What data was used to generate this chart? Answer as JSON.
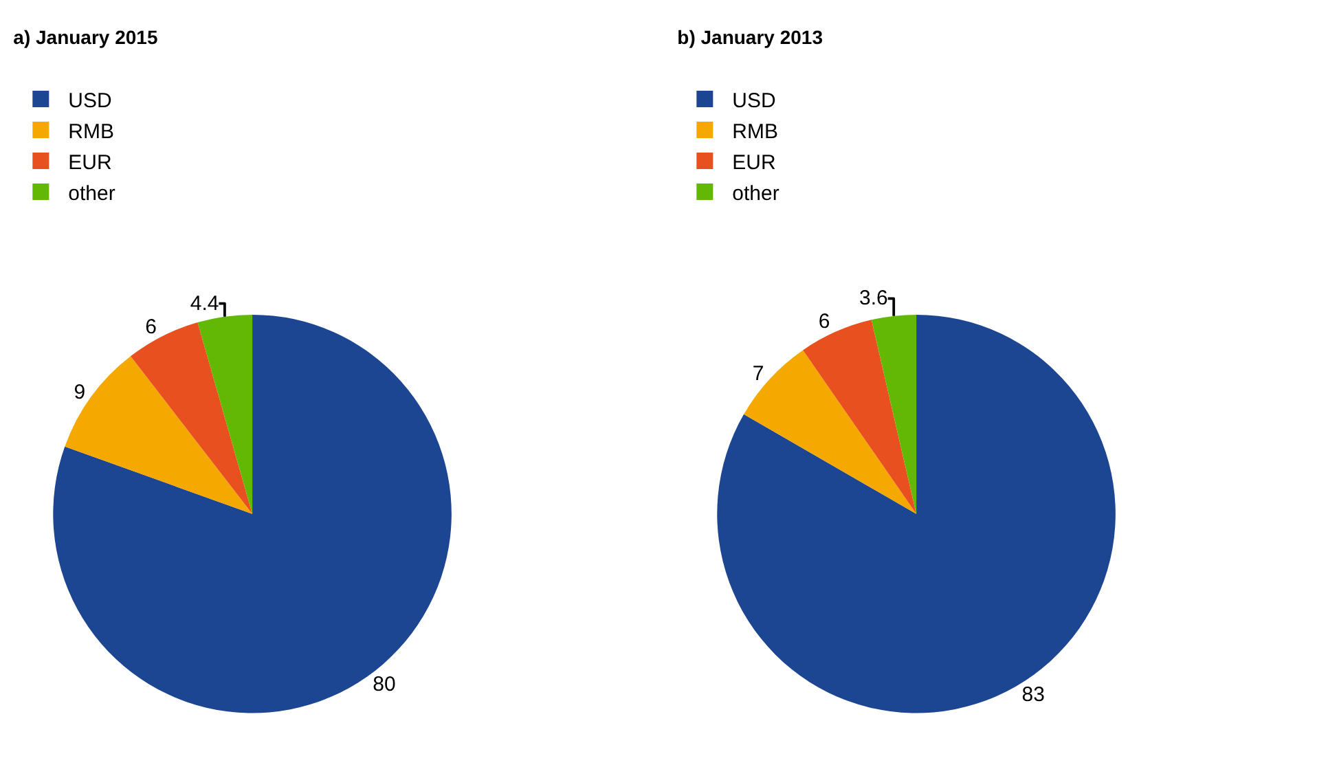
{
  "chart_data": [
    {
      "type": "pie",
      "title": "a) January 2015",
      "categories": [
        "USD",
        "RMB",
        "EUR",
        "other"
      ],
      "values": [
        80,
        9,
        6,
        4.4
      ],
      "colors": [
        "#1c4592",
        "#f5a800",
        "#e8501f",
        "#63b805"
      ],
      "data_labels": true,
      "legend": "top left"
    },
    {
      "type": "pie",
      "title": "b) January 2013",
      "categories": [
        "USD",
        "RMB",
        "EUR",
        "other"
      ],
      "values": [
        83,
        7,
        6,
        3.6
      ],
      "colors": [
        "#1c4592",
        "#f5a800",
        "#e8501f",
        "#63b805"
      ],
      "data_labels": true,
      "legend": "top left"
    }
  ]
}
